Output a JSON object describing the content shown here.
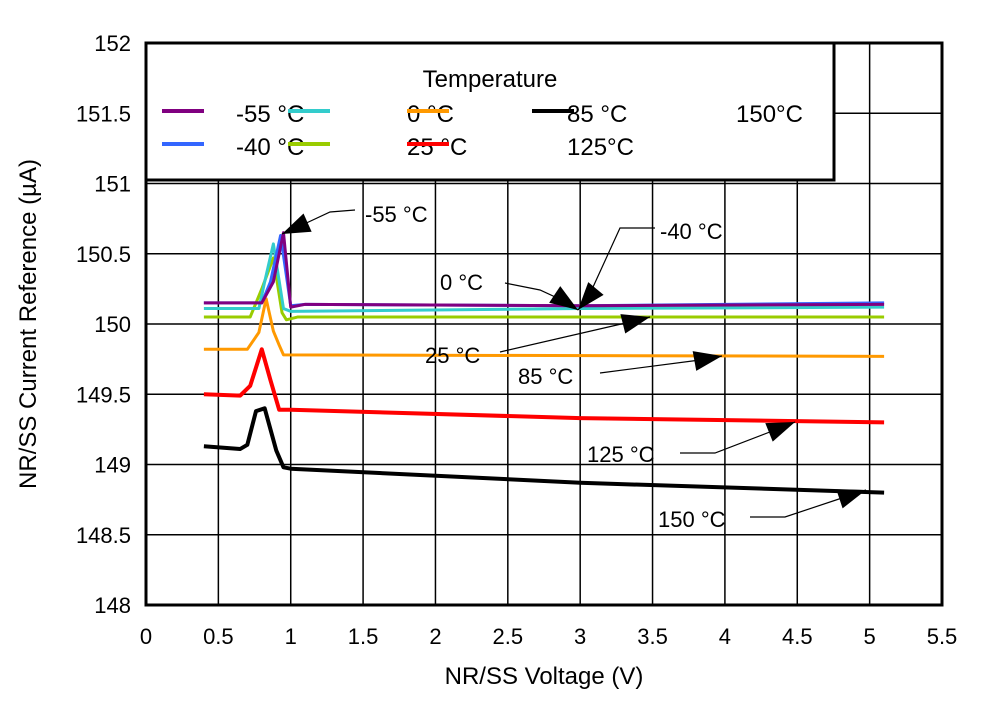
{
  "chart_data": {
    "type": "line",
    "title": "",
    "xlabel": "NR/SS Voltage (V)",
    "ylabel": "NR/SS Current Reference (µA)",
    "xlim": [
      0,
      5.5
    ],
    "ylim": [
      148,
      152
    ],
    "xticks": [
      "0",
      "0.5",
      "1",
      "1.5",
      "2",
      "2.5",
      "3",
      "3.5",
      "4",
      "4.5",
      "5",
      "5.5"
    ],
    "yticks": [
      "148",
      "148.5",
      "149",
      "149.5",
      "150",
      "150.5",
      "151",
      "151.5",
      "152"
    ],
    "grid": true,
    "legend": {
      "title": "Temperature",
      "placement": "top-left",
      "entries": [
        "-55 °C",
        "0 °C",
        "85 °C",
        "150°C",
        "-40 °C",
        "25 °C",
        "125°C"
      ]
    },
    "series": [
      {
        "name": "-55 °C",
        "color": "#800080",
        "x": [
          0.4,
          0.8,
          0.88,
          0.95,
          1.0,
          1.1,
          3.0,
          5.1
        ],
        "y": [
          150.15,
          150.15,
          150.3,
          150.65,
          150.12,
          150.14,
          150.13,
          150.14
        ]
      },
      {
        "name": "-40 °C",
        "color": "#3366ff",
        "x": [
          0.4,
          0.8,
          0.86,
          0.93,
          1.0,
          1.1,
          3.0,
          5.1
        ],
        "y": [
          150.15,
          150.15,
          150.3,
          150.63,
          150.13,
          150.14,
          150.13,
          150.15
        ]
      },
      {
        "name": "0 °C",
        "color": "#33cccc",
        "x": [
          0.4,
          0.78,
          0.82,
          0.88,
          0.95,
          1.0,
          3.0,
          5.1
        ],
        "y": [
          150.11,
          150.11,
          150.3,
          150.57,
          150.11,
          150.09,
          150.11,
          150.12
        ]
      },
      {
        "name": "25 °C",
        "color": "#99cc00",
        "x": [
          0.4,
          0.72,
          0.8,
          0.88,
          0.94,
          0.97,
          1.05,
          5.1
        ],
        "y": [
          150.05,
          150.05,
          150.25,
          150.47,
          150.08,
          150.03,
          150.05,
          150.05
        ]
      },
      {
        "name": "85 °C",
        "color": "#ff9900",
        "x": [
          0.4,
          0.7,
          0.78,
          0.83,
          0.88,
          0.92,
          0.95,
          5.1
        ],
        "y": [
          149.82,
          149.82,
          149.94,
          150.18,
          149.95,
          149.85,
          149.78,
          149.77
        ]
      },
      {
        "name": "125°C",
        "color": "#ff0000",
        "x": [
          0.4,
          0.65,
          0.72,
          0.8,
          0.86,
          0.92,
          1.0,
          3.0,
          5.1
        ],
        "y": [
          149.5,
          149.49,
          149.56,
          149.82,
          149.6,
          149.39,
          149.39,
          149.33,
          149.3
        ]
      },
      {
        "name": "150°C",
        "color": "#000000",
        "x": [
          0.4,
          0.65,
          0.7,
          0.76,
          0.82,
          0.9,
          0.95,
          1.0,
          3.0,
          5.1
        ],
        "y": [
          149.13,
          149.11,
          149.14,
          149.38,
          149.4,
          149.1,
          148.98,
          148.97,
          148.87,
          148.8
        ]
      }
    ],
    "annotations": [
      "-55 °C",
      "-40 °C",
      "0 °C",
      "25 °C",
      "85 °C",
      "125 °C",
      "150 °C"
    ]
  }
}
